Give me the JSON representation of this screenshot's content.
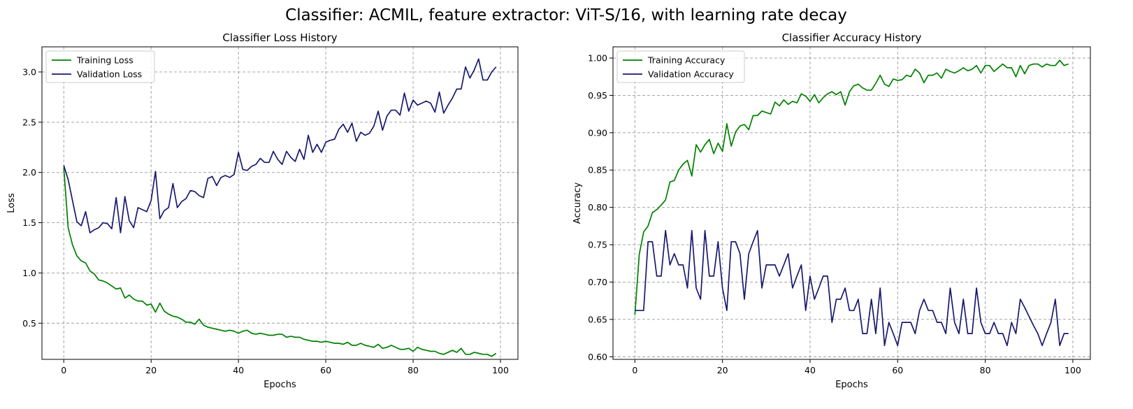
{
  "figure": {
    "suptitle": "Classifier: ACMIL, feature extractor: ViT-S/16, with learning rate decay"
  },
  "colors": {
    "training": "#008000",
    "validation": "#191970",
    "grid": "#999999"
  },
  "chart_data": [
    {
      "type": "line",
      "title": "Classifier Loss History",
      "xlabel": "Epochs",
      "ylabel": "Loss",
      "xlim": [
        -5,
        104
      ],
      "ylim": [
        0.14,
        3.25
      ],
      "xticks": [
        0,
        20,
        40,
        60,
        80,
        100
      ],
      "yticks": [
        0.5,
        1.0,
        1.5,
        2.0,
        2.5,
        3.0
      ],
      "ytick_labels": [
        "0.5",
        "1.0",
        "1.5",
        "2.0",
        "2.5",
        "3.0"
      ],
      "grid": true,
      "legend": "upper-left",
      "x": [
        0,
        1,
        2,
        3,
        4,
        5,
        6,
        7,
        8,
        9,
        10,
        11,
        12,
        13,
        14,
        15,
        16,
        17,
        18,
        19,
        20,
        21,
        22,
        23,
        24,
        25,
        26,
        27,
        28,
        29,
        30,
        31,
        32,
        33,
        34,
        35,
        36,
        37,
        38,
        39,
        40,
        41,
        42,
        43,
        44,
        45,
        46,
        47,
        48,
        49,
        50,
        51,
        52,
        53,
        54,
        55,
        56,
        57,
        58,
        59,
        60,
        61,
        62,
        63,
        64,
        65,
        66,
        67,
        68,
        69,
        70,
        71,
        72,
        73,
        74,
        75,
        76,
        77,
        78,
        79,
        80,
        81,
        82,
        83,
        84,
        85,
        86,
        87,
        88,
        89,
        90,
        91,
        92,
        93,
        94,
        95,
        96,
        97,
        98,
        99
      ],
      "series": [
        {
          "name": "Training Loss",
          "color": "#008000",
          "values": [
            2.05,
            1.45,
            1.28,
            1.17,
            1.12,
            1.1,
            1.02,
            0.99,
            0.93,
            0.92,
            0.9,
            0.87,
            0.84,
            0.85,
            0.75,
            0.78,
            0.74,
            0.72,
            0.72,
            0.68,
            0.69,
            0.61,
            0.7,
            0.62,
            0.59,
            0.57,
            0.56,
            0.54,
            0.51,
            0.51,
            0.49,
            0.54,
            0.48,
            0.46,
            0.45,
            0.44,
            0.43,
            0.42,
            0.43,
            0.42,
            0.4,
            0.42,
            0.43,
            0.4,
            0.39,
            0.4,
            0.39,
            0.38,
            0.38,
            0.39,
            0.39,
            0.36,
            0.37,
            0.36,
            0.36,
            0.34,
            0.33,
            0.32,
            0.32,
            0.31,
            0.32,
            0.31,
            0.3,
            0.3,
            0.29,
            0.31,
            0.28,
            0.28,
            0.3,
            0.28,
            0.27,
            0.26,
            0.29,
            0.25,
            0.26,
            0.28,
            0.26,
            0.24,
            0.24,
            0.25,
            0.22,
            0.26,
            0.24,
            0.23,
            0.22,
            0.22,
            0.2,
            0.19,
            0.21,
            0.23,
            0.21,
            0.25,
            0.19,
            0.19,
            0.21,
            0.2,
            0.19,
            0.19,
            0.17,
            0.2
          ]
        },
        {
          "name": "Validation Loss",
          "color": "#191970",
          "values": [
            2.07,
            1.93,
            1.72,
            1.51,
            1.47,
            1.61,
            1.4,
            1.43,
            1.45,
            1.5,
            1.49,
            1.44,
            1.75,
            1.4,
            1.76,
            1.52,
            1.45,
            1.65,
            1.63,
            1.61,
            1.72,
            2.01,
            1.54,
            1.62,
            1.65,
            1.89,
            1.65,
            1.71,
            1.74,
            1.82,
            1.81,
            1.77,
            1.75,
            1.94,
            1.96,
            1.87,
            1.95,
            1.97,
            1.95,
            1.98,
            2.2,
            2.03,
            2.02,
            2.06,
            2.08,
            2.14,
            2.1,
            2.1,
            2.21,
            2.13,
            2.08,
            2.21,
            2.15,
            2.11,
            2.23,
            2.13,
            2.37,
            2.2,
            2.28,
            2.2,
            2.3,
            2.32,
            2.33,
            2.43,
            2.48,
            2.4,
            2.49,
            2.31,
            2.4,
            2.37,
            2.39,
            2.46,
            2.61,
            2.42,
            2.56,
            2.62,
            2.62,
            2.57,
            2.79,
            2.61,
            2.72,
            2.67,
            2.69,
            2.71,
            2.69,
            2.6,
            2.8,
            2.59,
            2.67,
            2.74,
            2.83,
            2.83,
            3.05,
            2.94,
            3.02,
            3.13,
            2.92,
            2.92,
            3.0,
            3.05
          ]
        }
      ]
    },
    {
      "type": "line",
      "title": "Classifier Accuracy History",
      "xlabel": "Epochs",
      "ylabel": "Accuracy",
      "xlim": [
        -5,
        104
      ],
      "ylim": [
        0.5965,
        1.015
      ],
      "xticks": [
        0,
        20,
        40,
        60,
        80,
        100
      ],
      "yticks": [
        0.6,
        0.65,
        0.7,
        0.75,
        0.8,
        0.85,
        0.9,
        0.95,
        1.0
      ],
      "ytick_labels": [
        "0.60",
        "0.65",
        "0.70",
        "0.75",
        "0.80",
        "0.85",
        "0.90",
        "0.95",
        "1.00"
      ],
      "grid": true,
      "legend": "upper-left",
      "x": [
        0,
        1,
        2,
        3,
        4,
        5,
        6,
        7,
        8,
        9,
        10,
        11,
        12,
        13,
        14,
        15,
        16,
        17,
        18,
        19,
        20,
        21,
        22,
        23,
        24,
        25,
        26,
        27,
        28,
        29,
        30,
        31,
        32,
        33,
        34,
        35,
        36,
        37,
        38,
        39,
        40,
        41,
        42,
        43,
        44,
        45,
        46,
        47,
        48,
        49,
        50,
        51,
        52,
        53,
        54,
        55,
        56,
        57,
        58,
        59,
        60,
        61,
        62,
        63,
        64,
        65,
        66,
        67,
        68,
        69,
        70,
        71,
        72,
        73,
        74,
        75,
        76,
        77,
        78,
        79,
        80,
        81,
        82,
        83,
        84,
        85,
        86,
        87,
        88,
        89,
        90,
        91,
        92,
        93,
        94,
        95,
        96,
        97,
        98,
        99
      ],
      "series": [
        {
          "name": "Training Accuracy",
          "color": "#008000",
          "values": [
            0.656,
            0.737,
            0.767,
            0.775,
            0.793,
            0.797,
            0.803,
            0.81,
            0.834,
            0.836,
            0.85,
            0.858,
            0.863,
            0.842,
            0.884,
            0.874,
            0.884,
            0.891,
            0.872,
            0.886,
            0.875,
            0.912,
            0.882,
            0.901,
            0.909,
            0.911,
            0.904,
            0.923,
            0.923,
            0.929,
            0.927,
            0.925,
            0.941,
            0.936,
            0.944,
            0.938,
            0.942,
            0.94,
            0.952,
            0.949,
            0.942,
            0.951,
            0.94,
            0.947,
            0.952,
            0.955,
            0.951,
            0.955,
            0.937,
            0.955,
            0.963,
            0.965,
            0.96,
            0.957,
            0.957,
            0.966,
            0.977,
            0.965,
            0.962,
            0.972,
            0.97,
            0.971,
            0.977,
            0.975,
            0.985,
            0.98,
            0.967,
            0.977,
            0.977,
            0.98,
            0.973,
            0.985,
            0.982,
            0.98,
            0.983,
            0.987,
            0.983,
            0.985,
            0.99,
            0.98,
            0.99,
            0.99,
            0.982,
            0.987,
            0.992,
            0.987,
            0.987,
            0.975,
            0.99,
            0.979,
            0.99,
            0.992,
            0.992,
            0.988,
            0.992,
            0.99,
            0.99,
            0.997,
            0.99,
            0.992
          ]
        },
        {
          "name": "Validation Accuracy",
          "color": "#191970",
          "values": [
            0.662,
            0.662,
            0.662,
            0.754,
            0.754,
            0.708,
            0.708,
            0.769,
            0.723,
            0.738,
            0.723,
            0.723,
            0.692,
            0.769,
            0.692,
            0.677,
            0.769,
            0.708,
            0.708,
            0.754,
            0.692,
            0.662,
            0.754,
            0.754,
            0.738,
            0.677,
            0.738,
            0.754,
            0.769,
            0.692,
            0.723,
            0.723,
            0.723,
            0.708,
            0.723,
            0.738,
            0.692,
            0.708,
            0.723,
            0.662,
            0.708,
            0.677,
            0.692,
            0.708,
            0.708,
            0.646,
            0.677,
            0.677,
            0.692,
            0.662,
            0.662,
            0.677,
            0.631,
            0.631,
            0.677,
            0.631,
            0.692,
            0.615,
            0.646,
            0.631,
            0.615,
            0.646,
            0.646,
            0.646,
            0.631,
            0.662,
            0.677,
            0.662,
            0.662,
            0.646,
            0.646,
            0.631,
            0.692,
            0.646,
            0.631,
            0.677,
            0.631,
            0.631,
            0.692,
            0.646,
            0.631,
            0.631,
            0.646,
            0.631,
            0.631,
            0.615,
            0.646,
            0.631,
            0.677,
            0.666,
            0.654,
            0.642,
            0.631,
            0.615,
            0.631,
            0.646,
            0.677,
            0.615,
            0.631,
            0.631
          ]
        }
      ]
    }
  ]
}
